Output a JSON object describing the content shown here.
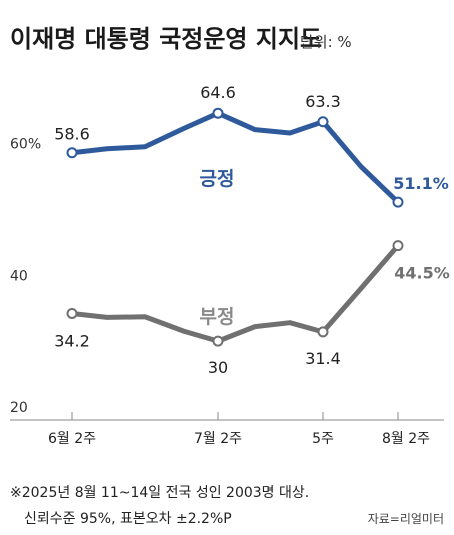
{
  "header": {
    "title": "이재명 대통령 국정운영 지지도",
    "unit": "단위: %"
  },
  "chart_data": {
    "type": "line",
    "title": "이재명 대통령 국정운영 지지도",
    "unit": "단위: %",
    "x_labels": [
      "6월 2주",
      "7월 2주",
      "5주",
      "8월 2주"
    ],
    "y_ticks": [
      {
        "value": 60,
        "label": "60%"
      },
      {
        "value": 40,
        "label": "40"
      },
      {
        "value": 20,
        "label": "20"
      }
    ],
    "ylim": [
      20,
      68
    ],
    "grid": false,
    "legend": "inline labels",
    "series": [
      {
        "name": "긍정",
        "color": "#2e5a9c",
        "x": [
          0,
          1,
          2,
          3,
          4,
          5,
          6,
          7,
          8,
          9
        ],
        "values": [
          58.6,
          59.2,
          59.5,
          62.3,
          64.6,
          62.1,
          61.6,
          63.3,
          56.5,
          51.1
        ],
        "labels": [
          {
            "index": 0,
            "text": "58.6"
          },
          {
            "index": 4,
            "text": "64.6"
          },
          {
            "index": 7,
            "text": "63.3"
          },
          {
            "index": 9,
            "text": "51.1%"
          }
        ],
        "markers": [
          0,
          4,
          7,
          9
        ]
      },
      {
        "name": "부정",
        "color": "#707070",
        "x": [
          0,
          1,
          2,
          3,
          4,
          5,
          6,
          7,
          8,
          9
        ],
        "values": [
          34.2,
          33.6,
          33.7,
          31.5,
          30.0,
          32.2,
          32.8,
          31.4,
          38.0,
          44.5
        ],
        "labels": [
          {
            "index": 0,
            "text": "34.2"
          },
          {
            "index": 4,
            "text": "30"
          },
          {
            "index": 7,
            "text": "31.4"
          },
          {
            "index": 9,
            "text": "44.5%"
          }
        ],
        "markers": [
          0,
          4,
          7,
          9
        ]
      }
    ]
  },
  "footer": {
    "note_line1": "※2025년 8월 11~14일 전국 성인 2003명 대상.",
    "note_line2": "신뢰수준 95%, 표본오차 ±2.2%P",
    "source": "자료=리얼미터"
  }
}
